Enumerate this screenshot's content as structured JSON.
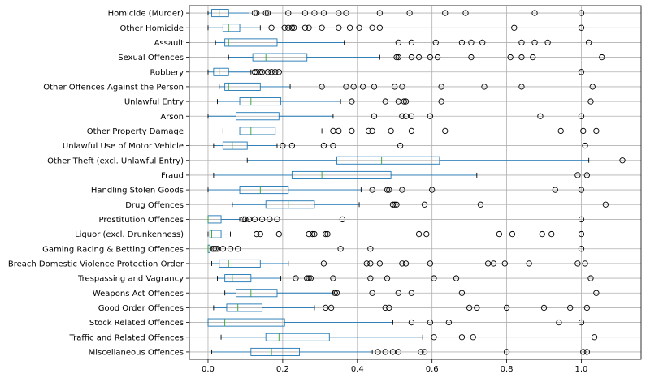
{
  "chart_data": {
    "type": "boxplot",
    "orientation": "horizontal",
    "title": "",
    "xlabel": "",
    "ylabel": "",
    "xlim": [
      -0.05,
      1.16
    ],
    "x_ticks": [
      0.0,
      0.2,
      0.4,
      0.6,
      0.8,
      1.0
    ],
    "x_tick_labels": [
      "0.0",
      "0.2",
      "0.4",
      "0.6",
      "0.8",
      "1.0"
    ],
    "grid": true,
    "colors": {
      "box": "#1f77b4",
      "median": "#2ca02c",
      "grid": "#b0b0b0",
      "axes": "#000000"
    },
    "categories": [
      {
        "name": "Miscellaneous Offences",
        "whislo": 0.01,
        "q1": 0.115,
        "med": 0.17,
        "q3": 0.245,
        "whishi": 0.44,
        "fliers": [
          0.455,
          0.475,
          0.495,
          0.51,
          0.57,
          0.58,
          0.8,
          1.005,
          1.015
        ]
      },
      {
        "name": "Traffic and Related Offences",
        "whislo": 0.035,
        "q1": 0.155,
        "med": 0.19,
        "q3": 0.325,
        "whishi": 0.575,
        "fliers": [
          0.605,
          0.68,
          0.71,
          1.035
        ]
      },
      {
        "name": "Stock Related Offences",
        "whislo": 0.0,
        "q1": 0.0,
        "med": 0.045,
        "q3": 0.205,
        "whishi": 0.495,
        "fliers": [
          0.545,
          0.595,
          0.645,
          0.94,
          1.0
        ]
      },
      {
        "name": "Good Order Offences",
        "whislo": 0.015,
        "q1": 0.05,
        "med": 0.08,
        "q3": 0.145,
        "whishi": 0.285,
        "fliers": [
          0.315,
          0.33,
          0.475,
          0.485,
          0.7,
          0.72,
          0.8,
          0.9,
          0.97,
          1.015
        ]
      },
      {
        "name": "Weapons Act Offences",
        "whislo": 0.045,
        "q1": 0.075,
        "med": 0.115,
        "q3": 0.185,
        "whishi": 0.335,
        "fliers": [
          0.34,
          0.345,
          0.44,
          0.51,
          0.545,
          0.68,
          1.04
        ]
      },
      {
        "name": "Trespassing and Vagrancy",
        "whislo": 0.025,
        "q1": 0.045,
        "med": 0.065,
        "q3": 0.115,
        "whishi": 0.195,
        "fliers": [
          0.235,
          0.265,
          0.27,
          0.275,
          0.335,
          0.435,
          0.48,
          0.605,
          0.665,
          1.025
        ]
      },
      {
        "name": "Breach Domestic Violence Protection Order",
        "whislo": 0.01,
        "q1": 0.03,
        "med": 0.055,
        "q3": 0.14,
        "whishi": 0.215,
        "fliers": [
          0.31,
          0.425,
          0.435,
          0.46,
          0.52,
          0.53,
          0.595,
          0.75,
          0.765,
          0.795,
          0.86,
          0.99,
          1.01
        ]
      },
      {
        "name": "Gaming Racing & Betting Offences",
        "whislo": 0.0,
        "q1": 0.0,
        "med": 0.0,
        "q3": 0.005,
        "whishi": 0.007,
        "fliers": [
          0.012,
          0.016,
          0.02,
          0.025,
          0.04,
          0.06,
          0.08,
          0.355,
          0.435,
          1.0
        ]
      },
      {
        "name": "Liquor (excl. Drunkenness)",
        "whislo": 0.0,
        "q1": 0.005,
        "med": 0.01,
        "q3": 0.035,
        "whishi": 0.06,
        "fliers": [
          0.13,
          0.14,
          0.19,
          0.27,
          0.28,
          0.285,
          0.315,
          0.32,
          0.565,
          0.585,
          0.78,
          0.815,
          0.895,
          0.92,
          1.0
        ]
      },
      {
        "name": "Prostitution Offences",
        "whislo": 0.0,
        "q1": 0.0,
        "med": 0.0,
        "q3": 0.035,
        "whishi": 0.085,
        "fliers": [
          0.095,
          0.1,
          0.11,
          0.125,
          0.145,
          0.165,
          0.185,
          0.36,
          1.0
        ]
      },
      {
        "name": "Drug Offences",
        "whislo": 0.065,
        "q1": 0.155,
        "med": 0.215,
        "q3": 0.285,
        "whishi": 0.405,
        "fliers": [
          0.495,
          0.5,
          0.505,
          0.58,
          0.73,
          1.065
        ]
      },
      {
        "name": "Handling Stolen Goods",
        "whislo": 0.0,
        "q1": 0.085,
        "med": 0.14,
        "q3": 0.215,
        "whishi": 0.41,
        "fliers": [
          0.44,
          0.48,
          0.485,
          0.52,
          0.6,
          0.93,
          1.0
        ]
      },
      {
        "name": "Fraud",
        "whislo": 0.015,
        "q1": 0.225,
        "med": 0.305,
        "q3": 0.49,
        "whishi": 0.72,
        "fliers": [
          0.99,
          1.015
        ]
      },
      {
        "name": "Other Theft (excl. Unlawful Entry)",
        "whislo": 0.105,
        "q1": 0.345,
        "med": 0.465,
        "q3": 0.62,
        "whishi": 1.02,
        "fliers": [
          1.11
        ]
      },
      {
        "name": "Unlawful Use of Motor Vehicle",
        "whislo": 0.015,
        "q1": 0.04,
        "med": 0.065,
        "q3": 0.105,
        "whishi": 0.185,
        "fliers": [
          0.2,
          0.225,
          0.31,
          0.335,
          0.515,
          1.01
        ]
      },
      {
        "name": "Other Property Damage",
        "whislo": 0.04,
        "q1": 0.085,
        "med": 0.115,
        "q3": 0.18,
        "whishi": 0.305,
        "fliers": [
          0.335,
          0.35,
          0.385,
          0.43,
          0.44,
          0.49,
          0.545,
          0.635,
          0.945,
          1.005,
          1.04
        ]
      },
      {
        "name": "Arson",
        "whislo": 0.0,
        "q1": 0.075,
        "med": 0.11,
        "q3": 0.19,
        "whishi": 0.335,
        "fliers": [
          0.445,
          0.52,
          0.53,
          0.545,
          0.595,
          0.89,
          1.0
        ]
      },
      {
        "name": "Unlawful Entry",
        "whislo": 0.025,
        "q1": 0.085,
        "med": 0.115,
        "q3": 0.195,
        "whishi": 0.355,
        "fliers": [
          0.385,
          0.475,
          0.51,
          0.525,
          0.53,
          0.625,
          1.025
        ]
      },
      {
        "name": "Other Offences Against the Person",
        "whislo": 0.03,
        "q1": 0.045,
        "med": 0.055,
        "q3": 0.14,
        "whishi": 0.22,
        "fliers": [
          0.305,
          0.37,
          0.39,
          0.415,
          0.445,
          0.5,
          0.52,
          0.625,
          0.74,
          0.84,
          1.03
        ]
      },
      {
        "name": "Robbery",
        "whislo": 0.0,
        "q1": 0.015,
        "med": 0.03,
        "q3": 0.055,
        "whishi": 0.115,
        "fliers": [
          0.125,
          0.13,
          0.14,
          0.145,
          0.16,
          0.17,
          0.18,
          0.19,
          1.0
        ]
      },
      {
        "name": "Sexual Offences",
        "whislo": 0.055,
        "q1": 0.12,
        "med": 0.155,
        "q3": 0.265,
        "whishi": 0.46,
        "fliers": [
          0.505,
          0.51,
          0.545,
          0.565,
          0.595,
          0.615,
          0.705,
          0.81,
          0.84,
          0.87,
          1.055
        ]
      },
      {
        "name": "Assault",
        "whislo": 0.02,
        "q1": 0.045,
        "med": 0.055,
        "q3": 0.185,
        "whishi": 0.365,
        "fliers": [
          0.51,
          0.545,
          0.61,
          0.68,
          0.705,
          0.735,
          0.84,
          0.875,
          0.91,
          1.02
        ]
      },
      {
        "name": "Other Homicide",
        "whislo": 0.0,
        "q1": 0.04,
        "med": 0.055,
        "q3": 0.085,
        "whishi": 0.14,
        "fliers": [
          0.17,
          0.205,
          0.215,
          0.225,
          0.23,
          0.26,
          0.27,
          0.305,
          0.35,
          0.38,
          0.405,
          0.44,
          0.46,
          0.82,
          1.0
        ]
      },
      {
        "name": "Homicide (Murder)",
        "whislo": 0.0,
        "q1": 0.01,
        "med": 0.03,
        "q3": 0.055,
        "whishi": 0.11,
        "fliers": [
          0.125,
          0.13,
          0.155,
          0.16,
          0.215,
          0.26,
          0.285,
          0.31,
          0.35,
          0.37,
          0.46,
          0.54,
          0.635,
          0.69,
          0.875,
          1.0
        ]
      }
    ]
  }
}
